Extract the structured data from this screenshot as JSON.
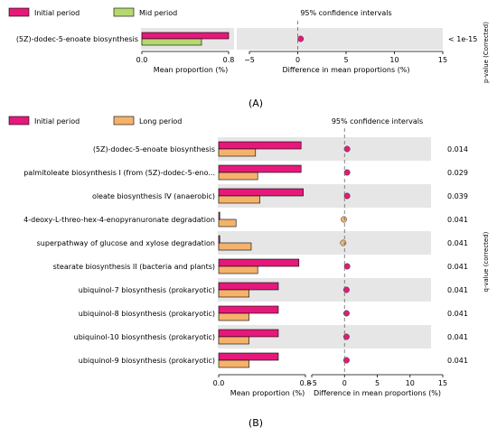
{
  "panel_labels": [
    "(A)",
    "(B)"
  ],
  "chart_data": [
    {
      "type": "bar",
      "panel": "(A)",
      "categories": [
        "(5Z)-dodec-5-enoate biosynthesis"
      ],
      "series": [
        {
          "name": "Initial period",
          "color": "#e6197b",
          "values": [
            0.8
          ]
        },
        {
          "name": "Mid period",
          "color": "#b5d96e",
          "values": [
            0.55
          ]
        }
      ],
      "xlabel": "Mean proportion (%)",
      "xlim": [
        0,
        0.8
      ],
      "xticks": [
        "0.0",
        "0.8"
      ],
      "legend_position": "top-left",
      "ci": {
        "title": "95% confidence intervals",
        "xlabel": "Difference in mean proportions (%)",
        "xlim": [
          -5,
          15
        ],
        "xticks": [
          "−5",
          "0",
          "5",
          "10",
          "15"
        ],
        "points": [
          0.3
        ],
        "colors": [
          "#e6197b"
        ]
      },
      "pvalues": [
        "< 1e-15"
      ],
      "pvalue_label": "p-value (Corrected)"
    },
    {
      "type": "bar",
      "panel": "(B)",
      "categories": [
        "(5Z)-dodec-5-enoate biosynthesis",
        "palmitoleate biosynthesis I (from (5Z)-dodec-5-eno...",
        "oleate biosynthesis IV (anaerobic)",
        "4-deoxy-L-threo-hex-4-enopyranuronate degradation",
        "superpathway of glucose and xylose degradation",
        "stearate biosynthesis II (bacteria and plants)",
        "ubiquinol-7 biosynthesis (prokaryotic)",
        "ubiquinol-8 biosynthesis (prokaryotic)",
        "ubiquinol-10 biosynthesis (prokaryotic)",
        "ubiquinol-9 biosynthesis (prokaryotic)"
      ],
      "series": [
        {
          "name": "Initial period",
          "color": "#e6197b",
          "values": [
            0.76,
            0.76,
            0.78,
            0.01,
            0.01,
            0.74,
            0.55,
            0.55,
            0.55,
            0.55
          ]
        },
        {
          "name": "Long period",
          "color": "#f5b26b",
          "values": [
            0.34,
            0.36,
            0.38,
            0.16,
            0.3,
            0.36,
            0.28,
            0.28,
            0.28,
            0.28
          ]
        }
      ],
      "xlabel": "Mean proportion (%)",
      "xlim": [
        0,
        0.8
      ],
      "xticks": [
        "0.0",
        "0.8"
      ],
      "legend_position": "top-left",
      "ci": {
        "title": "95% confidence intervals",
        "xlabel": "Difference in mean proportions (%)",
        "xlim": [
          -5,
          15
        ],
        "xticks": [
          "−5",
          "0",
          "5",
          "10",
          "15"
        ],
        "points": [
          0.4,
          0.4,
          0.4,
          -0.1,
          -0.2,
          0.4,
          0.3,
          0.3,
          0.3,
          0.3
        ],
        "colors": [
          "#e6197b",
          "#e6197b",
          "#e6197b",
          "#f5b26b",
          "#f5b26b",
          "#e6197b",
          "#e6197b",
          "#e6197b",
          "#e6197b",
          "#e6197b"
        ]
      },
      "qvalues": [
        "0.014",
        "0.029",
        "0.039",
        "0.041",
        "0.041",
        "0.041",
        "0.041",
        "0.041",
        "0.041",
        "0.041"
      ],
      "qvalue_label": "q-value (corrected)"
    }
  ]
}
